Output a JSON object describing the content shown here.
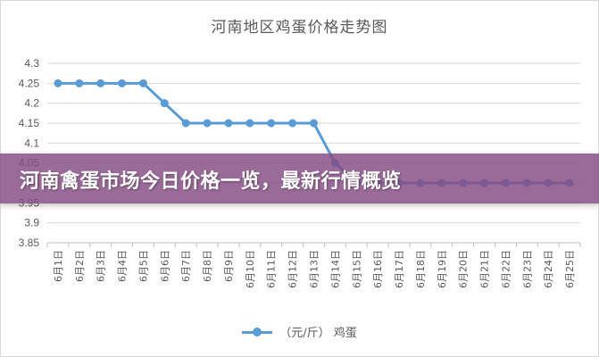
{
  "chart_data": {
    "type": "line",
    "title": "河南地区鸡蛋价格走势图",
    "categories": [
      "6月1日",
      "6月2日",
      "6月3日",
      "6月4日",
      "6月5日",
      "6月6日",
      "6月7日",
      "6月8日",
      "6月9日",
      "6月10日",
      "6月11日",
      "6月12日",
      "6月13日",
      "6月14日",
      "6月15日",
      "6月16日",
      "6月17日",
      "6月18日",
      "6月19日",
      "6月20日",
      "6月21日",
      "6月22日",
      "6月23日",
      "6月24日",
      "6月25日"
    ],
    "series": [
      {
        "name": "（元/斤） 鸡蛋",
        "color": "#5b9bd5",
        "values": [
          4.25,
          4.25,
          4.25,
          4.25,
          4.25,
          4.2,
          4.15,
          4.15,
          4.15,
          4.15,
          4.15,
          4.15,
          4.15,
          4.05,
          4.0,
          4.0,
          4.0,
          4.0,
          4.0,
          4.0,
          4.0,
          4.0,
          4.0,
          4.0,
          4.0
        ]
      }
    ],
    "ylim": [
      3.85,
      4.3
    ],
    "yticks": [
      "4.3",
      "4.25",
      "4.2",
      "4.15",
      "4.1",
      "4.05",
      "4",
      "3.95",
      "3.9",
      "3.85"
    ],
    "grid": true,
    "legend_position": "bottom"
  },
  "banner": {
    "text": "河南禽蛋市场今日价格一览，最新行情概览",
    "color": "#844a82"
  }
}
